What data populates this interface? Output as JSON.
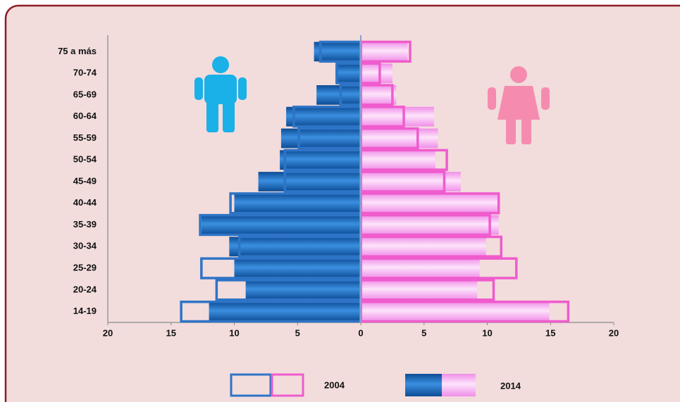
{
  "chart_data": {
    "type": "pyramid",
    "categories": [
      "75 a más",
      "70-74",
      "65-69",
      "60-64",
      "55-59",
      "50-54",
      "45-49",
      "40-44",
      "35-39",
      "30-34",
      "25-29",
      "20-24",
      "14-19"
    ],
    "series": [
      {
        "name": "2004",
        "style": "outline",
        "colors": [
          "#2e74c6",
          "#ef5ccd"
        ],
        "male": [
          -3.2,
          -1.9,
          -1.6,
          -5.3,
          -4.9,
          -6.0,
          -6.0,
          -10.3,
          -12.7,
          -9.6,
          -12.6,
          -11.4,
          -14.2
        ],
        "female": [
          3.9,
          1.5,
          2.5,
          3.4,
          4.5,
          6.8,
          6.6,
          10.9,
          10.2,
          11.1,
          12.3,
          10.5,
          16.4
        ]
      },
      {
        "name": "2014",
        "style": "filled",
        "colors": [
          "#1a66b8",
          "#f7a6f2"
        ],
        "male": [
          -3.7,
          -2.0,
          -3.5,
          -5.9,
          -6.3,
          -6.4,
          -8.1,
          -10.0,
          -12.6,
          -10.4,
          -10.0,
          -9.1,
          -12.0
        ],
        "female": [
          3.7,
          2.5,
          2.8,
          5.8,
          6.1,
          5.9,
          7.9,
          10.8,
          10.9,
          9.9,
          9.4,
          9.2,
          14.9
        ]
      }
    ],
    "xlim": [
      -20,
      20
    ],
    "xticks": [
      {
        "value": -20,
        "label": "20"
      },
      {
        "value": -15,
        "label": "15"
      },
      {
        "value": -10,
        "label": "10"
      },
      {
        "value": -5,
        "label": "5"
      },
      0,
      5,
      10,
      15,
      20
    ]
  }
}
